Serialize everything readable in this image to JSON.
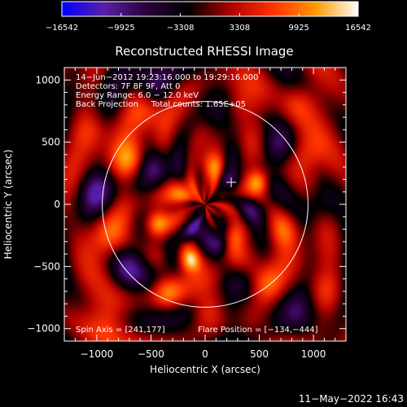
{
  "chart_data": {
    "type": "heatmap",
    "title": "Reconstructed RHESSI Image",
    "xlabel": "Heliocentric X (arcsec)",
    "ylabel": "Heliocentric Y (arcsec)",
    "xlim": [
      -1300,
      1300
    ],
    "ylim": [
      -1100,
      1100
    ],
    "xticks": [
      -1000,
      -500,
      0,
      500,
      1000
    ],
    "xtick_labels": [
      "−1000",
      "−500",
      "0",
      "500",
      "1000"
    ],
    "yticks": [
      -1000,
      -500,
      0,
      500,
      1000
    ],
    "ytick_labels": [
      "−1000",
      "−500",
      "0",
      "500",
      "1000"
    ],
    "colorbar": {
      "min": -16542,
      "max": 16542,
      "ticks": [
        -16542,
        -9925,
        -3308,
        3308,
        9925,
        16542
      ],
      "tick_labels": [
        "−16542",
        "−9925",
        "−3308",
        "3308",
        "9925",
        "16542"
      ],
      "colors": [
        "#0000ff",
        "#5a1fa8",
        "#2a003a",
        "#000000",
        "#b00000",
        "#ff3300",
        "#ff9900",
        "#ffffff"
      ]
    },
    "info_lines": [
      "14−Jun−2012 19:23:16.000 to 19:29:16.000",
      "Detectors: 7F 8F 9F, Att 0",
      "Energy Range: 6.0 − 12.0 keV",
      "Back Projection     Total counts: 1.65E+05"
    ],
    "spin_axis_label": "Spin Axis = [241,177]",
    "flare_position_label": "Flare Position = [−134,−444]",
    "solar_disk": {
      "center": [
        0,
        0
      ],
      "radius": 950
    },
    "cross_marker": [
      241,
      177
    ],
    "blobs": [
      {
        "x": -134,
        "y": -444,
        "v": 1.0,
        "s": 70
      },
      {
        "x": -450,
        "y": -150,
        "v": 0.85,
        "s": 80
      },
      {
        "x": 480,
        "y": 180,
        "v": 0.85,
        "s": 75
      },
      {
        "x": 50,
        "y": 320,
        "v": 0.7,
        "s": 90
      },
      {
        "x": -200,
        "y": 100,
        "v": 0.6,
        "s": 90
      },
      {
        "x": 250,
        "y": -250,
        "v": 0.75,
        "s": 80
      },
      {
        "x": -700,
        "y": 350,
        "v": 0.6,
        "s": 110
      },
      {
        "x": 700,
        "y": -200,
        "v": 0.55,
        "s": 110
      },
      {
        "x": -350,
        "y": -700,
        "v": 0.55,
        "s": 100
      },
      {
        "x": 550,
        "y": -650,
        "v": 0.5,
        "s": 110
      },
      {
        "x": -900,
        "y": -250,
        "v": 0.5,
        "s": 120
      },
      {
        "x": 900,
        "y": 400,
        "v": 0.45,
        "s": 120
      },
      {
        "x": -550,
        "y": 750,
        "v": 0.45,
        "s": 110
      },
      {
        "x": 300,
        "y": 800,
        "v": 0.45,
        "s": 110
      },
      {
        "x": -1050,
        "y": 600,
        "v": 0.4,
        "s": 120
      },
      {
        "x": 1100,
        "y": -700,
        "v": 0.4,
        "s": 120
      },
      {
        "x": 20,
        "y": -850,
        "v": 0.4,
        "s": 110
      },
      {
        "x": 850,
        "y": 800,
        "v": 0.35,
        "s": 120
      },
      {
        "x": -900,
        "y": -900,
        "v": 0.35,
        "s": 130
      },
      {
        "x": 230,
        "y": 180,
        "v": -0.6,
        "s": 70
      },
      {
        "x": -100,
        "y": -200,
        "v": -0.55,
        "s": 80
      },
      {
        "x": 150,
        "y": -300,
        "v": -0.65,
        "s": 70
      },
      {
        "x": -300,
        "y": -400,
        "v": -0.55,
        "s": 80
      },
      {
        "x": -450,
        "y": 300,
        "v": -0.45,
        "s": 100
      },
      {
        "x": 400,
        "y": -50,
        "v": -0.45,
        "s": 90
      },
      {
        "x": 650,
        "y": 450,
        "v": -0.4,
        "s": 110
      },
      {
        "x": -700,
        "y": -500,
        "v": -0.4,
        "s": 110
      },
      {
        "x": 100,
        "y": 650,
        "v": -0.4,
        "s": 110
      },
      {
        "x": -1000,
        "y": 100,
        "v": -0.45,
        "s": 120
      },
      {
        "x": 1050,
        "y": 0,
        "v": -0.45,
        "s": 120
      },
      {
        "x": 250,
        "y": -900,
        "v": -0.4,
        "s": 120
      },
      {
        "x": -500,
        "y": 1000,
        "v": -0.4,
        "s": 120
      },
      {
        "x": 900,
        "y": -950,
        "v": -0.4,
        "s": 130
      }
    ]
  },
  "footer": {
    "timestamp": "11−May−2022 16:43"
  }
}
